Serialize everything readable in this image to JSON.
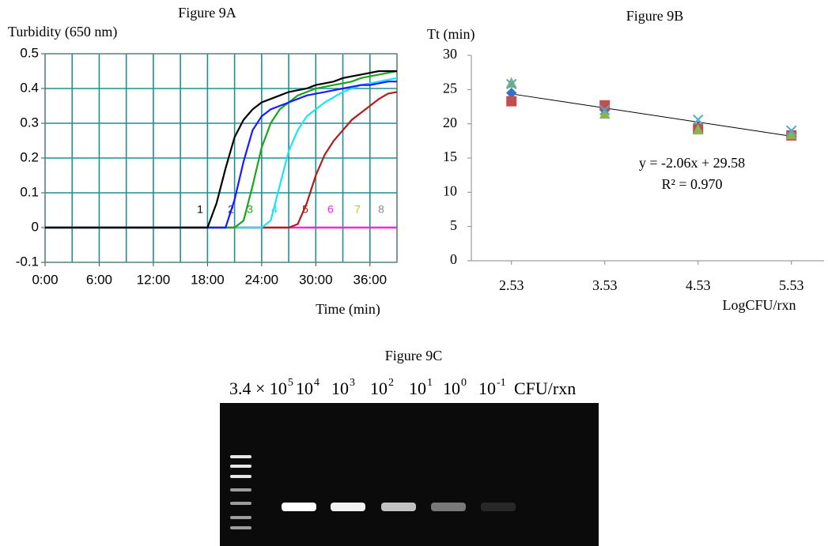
{
  "chart_data": [
    {
      "type": "line",
      "title": "Figure 9A",
      "y_label": "Turbidity (650 nm)",
      "x_label": "Time (min)",
      "xlim": [
        0,
        39
      ],
      "ylim": [
        -0.1,
        0.5
      ],
      "xticks": [
        {
          "value": 0,
          "label": "0:00"
        },
        {
          "value": 6,
          "label": "6:00"
        },
        {
          "value": 12,
          "label": "12:00"
        },
        {
          "value": 18,
          "label": "18:00"
        },
        {
          "value": 24,
          "label": "24:00"
        },
        {
          "value": 30,
          "label": "30:00"
        },
        {
          "value": 36,
          "label": "36:00"
        }
      ],
      "x_minor_grid": [
        3,
        9,
        15,
        21,
        27,
        33,
        39
      ],
      "yticks": [
        0.5,
        0.4,
        0.3,
        0.2,
        0.1,
        0,
        -0.1
      ],
      "grid": true,
      "grid_color": "#1f8f94",
      "x": [
        0,
        16,
        17,
        18,
        19,
        20,
        21,
        22,
        23,
        24,
        25,
        26,
        27,
        28,
        29,
        30,
        31,
        32,
        33,
        34,
        35,
        36,
        37,
        38,
        39
      ],
      "series": [
        {
          "name": "1",
          "color": "#000000",
          "values": [
            0,
            0,
            0,
            0,
            0.07,
            0.17,
            0.26,
            0.31,
            0.34,
            0.36,
            0.37,
            0.38,
            0.39,
            0.395,
            0.4,
            0.41,
            0.415,
            0.42,
            0.43,
            0.435,
            0.44,
            0.445,
            0.45,
            0.45,
            0.45
          ]
        },
        {
          "name": "2",
          "color": "#1a1aff",
          "values": [
            0,
            0,
            0,
            0,
            0,
            0,
            0.08,
            0.19,
            0.28,
            0.32,
            0.34,
            0.35,
            0.36,
            0.37,
            0.38,
            0.385,
            0.39,
            0.395,
            0.4,
            0.405,
            0.41,
            0.41,
            0.415,
            0.42,
            0.42
          ]
        },
        {
          "name": "3",
          "color": "#1aa51a",
          "values": [
            0,
            0,
            0,
            0,
            0,
            0,
            0,
            0.02,
            0.12,
            0.23,
            0.3,
            0.34,
            0.36,
            0.38,
            0.39,
            0.4,
            0.405,
            0.41,
            0.415,
            0.42,
            0.43,
            0.435,
            0.44,
            0.445,
            0.45
          ]
        },
        {
          "name": "4",
          "color": "#19e6f0",
          "values": [
            0,
            0,
            0,
            0,
            0,
            0,
            0,
            0,
            0,
            0,
            0.02,
            0.12,
            0.22,
            0.28,
            0.32,
            0.34,
            0.36,
            0.375,
            0.39,
            0.4,
            0.41,
            0.415,
            0.42,
            0.425,
            0.43
          ]
        },
        {
          "name": "5",
          "color": "#b01c1c",
          "values": [
            0,
            0,
            0,
            0,
            0,
            0,
            0,
            0,
            0,
            0,
            0,
            0,
            0,
            0.01,
            0.07,
            0.15,
            0.21,
            0.25,
            0.28,
            0.31,
            0.33,
            0.35,
            0.37,
            0.385,
            0.39
          ]
        },
        {
          "name": "6",
          "color": "#ff1aff",
          "values": [
            0,
            0,
            0,
            0,
            0,
            0,
            0,
            0,
            0,
            0,
            0,
            0,
            0,
            0,
            0,
            0,
            0,
            0,
            0,
            0,
            0,
            0,
            0,
            0,
            0
          ]
        },
        {
          "name": "7",
          "color": "#b5c83a",
          "values": [
            0,
            0,
            0,
            0,
            0,
            0,
            0,
            0,
            0,
            0,
            0,
            0,
            0,
            0,
            0,
            0,
            0,
            0,
            0,
            0,
            0,
            0,
            0,
            0,
            0
          ]
        },
        {
          "name": "8",
          "color": "#8c8c8c",
          "values": [
            0,
            0,
            0,
            0,
            0,
            0,
            0,
            0,
            0,
            0,
            0,
            0,
            0,
            0,
            0,
            0,
            0,
            0,
            0,
            0,
            0,
            0,
            0,
            0,
            0
          ]
        }
      ]
    },
    {
      "type": "scatter",
      "title": "Figure 9B",
      "y_label": "Tt (min)",
      "x_label": "LogCFU/rxn",
      "xlim": [
        2.1,
        5.88
      ],
      "ylim": [
        0,
        30
      ],
      "xticks": [
        2.53,
        3.53,
        4.53,
        5.53
      ],
      "yticks": [
        0,
        5,
        10,
        15,
        20,
        25,
        30
      ],
      "x": [
        2.53,
        3.53,
        4.53,
        5.53
      ],
      "series": [
        {
          "color": "#3a6fc4",
          "marker": "diamond",
          "values": [
            24.5,
            22,
            19.5,
            18.5
          ]
        },
        {
          "color": "#c0504d",
          "marker": "square",
          "values": [
            23.3,
            22.7,
            19.3,
            18.3
          ]
        },
        {
          "color": "#8cb254",
          "marker": "triangle",
          "values": [
            26,
            21.5,
            19.2,
            18.5
          ]
        },
        {
          "color": "#4bacc6",
          "marker": "x",
          "values": [
            25.8,
            22,
            20.6,
            19
          ]
        }
      ],
      "trendline": {
        "slope": -2.06,
        "intercept": 29.58,
        "label": "y = -2.06x + 29.58",
        "r2_label": "R² = 0.970"
      }
    }
  ],
  "figure_9c": {
    "title": "Figure 9C",
    "unit": "CFU/rxn",
    "lane_labels": [
      {
        "base": "3.4 × 10",
        "exp": "5"
      },
      {
        "base": "10",
        "exp": "4"
      },
      {
        "base": "10",
        "exp": "3"
      },
      {
        "base": "10",
        "exp": "2"
      },
      {
        "base": "10",
        "exp": "1"
      },
      {
        "base": "10",
        "exp": "0"
      },
      {
        "base": "10",
        "exp": "-1"
      }
    ]
  }
}
